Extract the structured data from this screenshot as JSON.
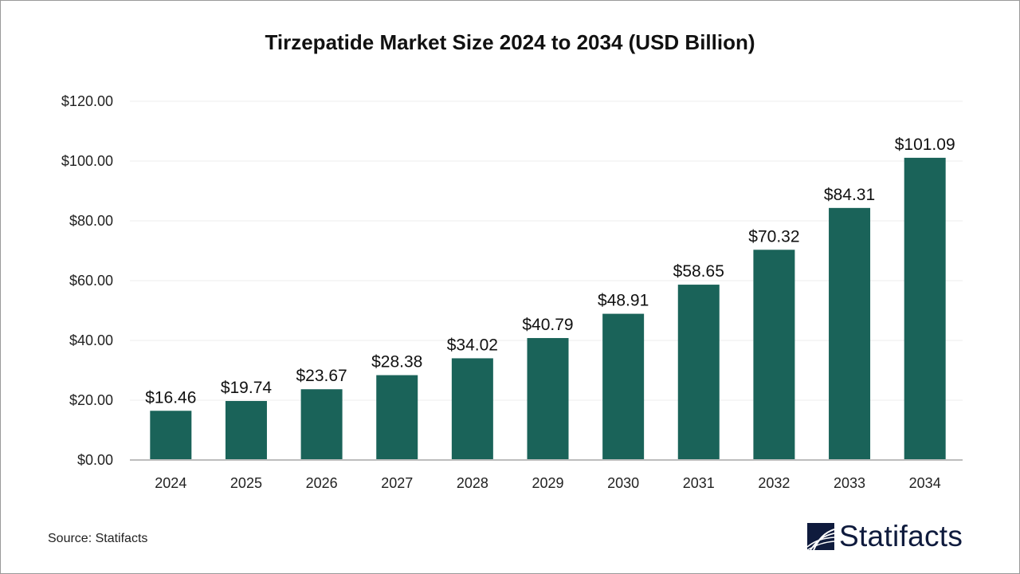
{
  "chart_data": {
    "type": "bar",
    "title": "Tirzepatide Market Size 2024 to 2034 (USD Billion)",
    "categories": [
      "2024",
      "2025",
      "2026",
      "2027",
      "2028",
      "2029",
      "2030",
      "2031",
      "2032",
      "2033",
      "2034"
    ],
    "values": [
      16.46,
      19.74,
      23.67,
      28.38,
      34.02,
      40.79,
      48.91,
      58.65,
      70.32,
      84.31,
      101.09
    ],
    "data_labels": [
      "$16.46",
      "$19.74",
      "$23.67",
      "$28.38",
      "$34.02",
      "$40.79",
      "$48.91",
      "$58.65",
      "$70.32",
      "$84.31",
      "$101.09"
    ],
    "yticks": [
      0,
      20,
      40,
      60,
      80,
      100,
      120
    ],
    "ytick_labels": [
      "$0.00",
      "$20.00",
      "$40.00",
      "$60.00",
      "$80.00",
      "$100.00",
      "$120.00"
    ],
    "ylim": [
      0,
      120
    ],
    "xlabel": "",
    "ylabel": "",
    "grid": true,
    "bar_color": "#1a6359"
  },
  "footer": {
    "source": "Source: Statifacts"
  },
  "logo": {
    "text": "Statifacts",
    "color": "#0f1b3d"
  }
}
